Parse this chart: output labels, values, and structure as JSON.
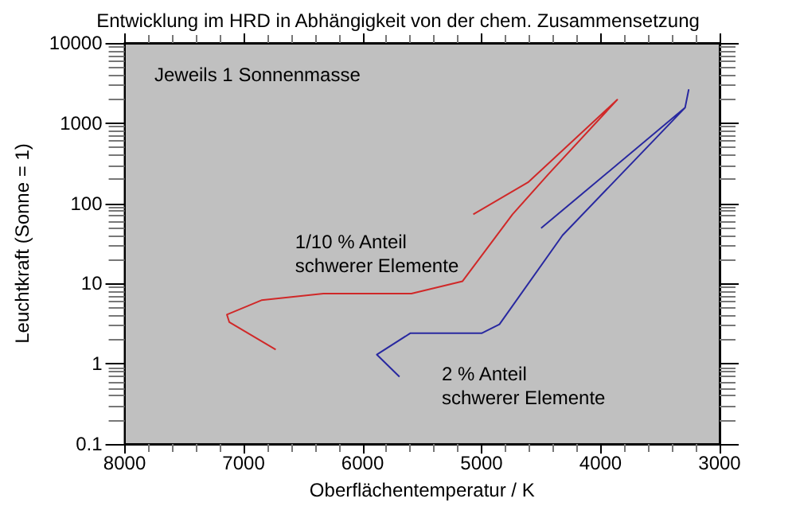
{
  "chart_data": {
    "type": "line",
    "title": "Entwicklung im HRD in Abhängigkeit von der chem. Zusammensetzung",
    "xlabel": "Oberflächentemperatur / K",
    "ylabel": "Leuchtkraft (Sonne = 1)",
    "annotations": [
      "Jeweils 1 Sonnenmasse"
    ],
    "series": [
      {
        "name": "1/10 % Anteil\nschwerer Elemente",
        "color": "#d02828",
        "x": [
          6730,
          7120,
          7140,
          6850,
          6330,
          5590,
          5160,
          4740,
          4440,
          3860,
          4610,
          5070
        ],
        "values": [
          1.5,
          3.3,
          4.1,
          6.2,
          7.5,
          7.5,
          10.7,
          73,
          230,
          1960,
          183,
          73
        ]
      },
      {
        "name": "2 % Anteil\nschwerer Elemente",
        "color": "#2828a0",
        "x": [
          5690,
          5880,
          5600,
          5000,
          4850,
          4320,
          3290,
          3260,
          3290,
          4500
        ],
        "values": [
          0.69,
          1.3,
          2.4,
          2.4,
          3.1,
          40,
          1560,
          2600,
          1560,
          49
        ]
      }
    ],
    "xlim": [
      8000,
      3000
    ],
    "xticks": [
      8000,
      7000,
      6000,
      5000,
      4000,
      3000
    ],
    "ylim": [
      0.1,
      10000
    ],
    "yticks": [
      0.1,
      1,
      10,
      100,
      1000,
      10000
    ],
    "log": "y",
    "grid": false,
    "marker": "none",
    "line_style": "solid"
  }
}
